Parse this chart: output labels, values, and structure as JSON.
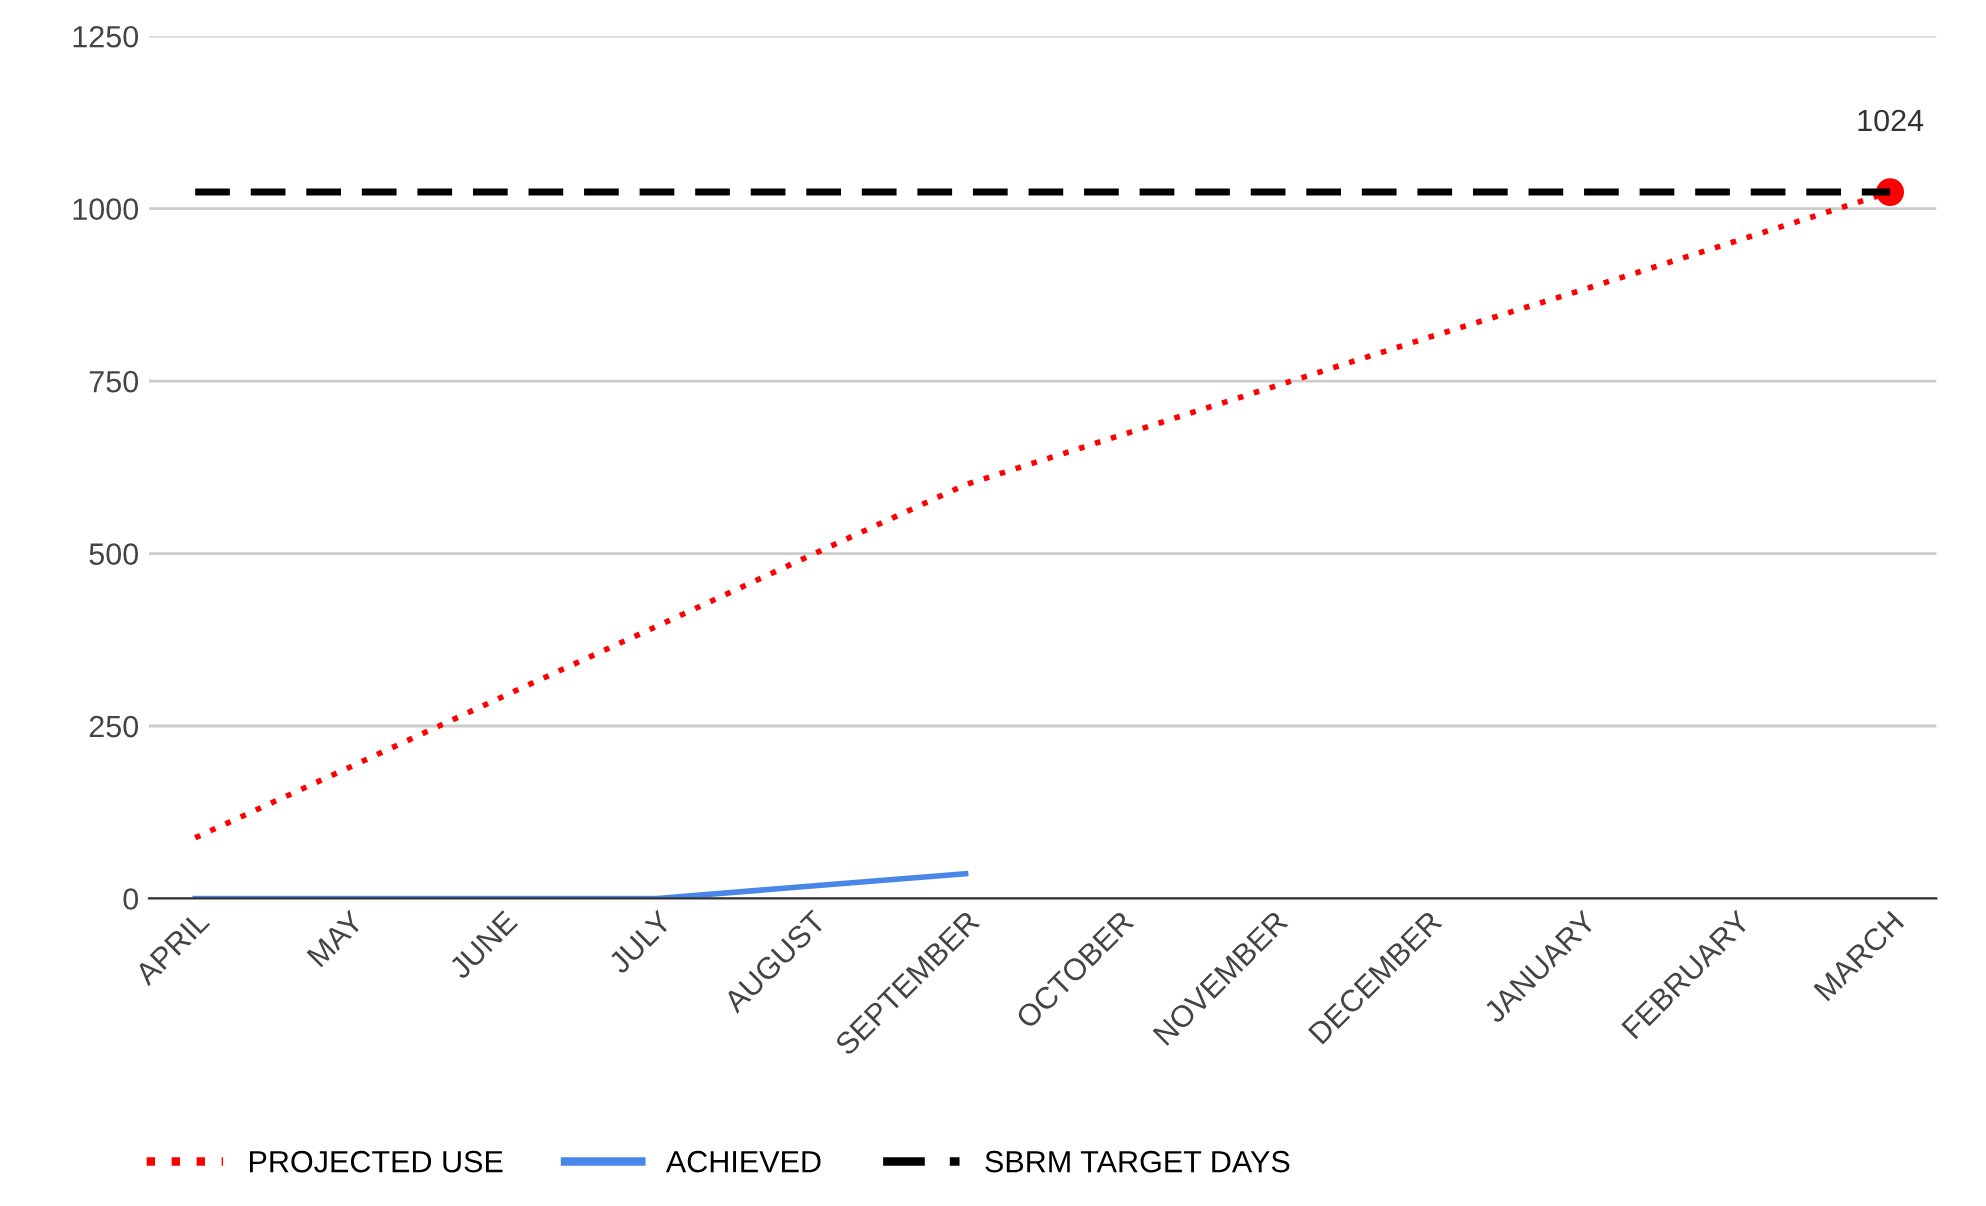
{
  "chart_data": {
    "type": "line",
    "categories": [
      "APRIL",
      "MAY",
      "JUNE",
      "JULY",
      "AUGUST",
      "SEPTEMBER",
      "OCTOBER",
      "NOVEMBER",
      "DECEMBER",
      "JANUARY",
      "FEBRUARY",
      "MARCH"
    ],
    "series": [
      {
        "name": "PROJECTED USE",
        "color": "#ff0000",
        "line_style": "dotted",
        "values": [
          88,
          190,
          293,
          395,
          498,
          600,
          671,
          742,
          813,
          882,
          953,
          1024
        ],
        "value_labels": [
          null,
          null,
          null,
          null,
          null,
          null,
          null,
          null,
          null,
          null,
          null,
          "1024"
        ]
      },
      {
        "name": "ACHIEVED",
        "color": "#4a86e8",
        "line_style": "solid",
        "values": [
          0,
          0,
          0,
          0,
          18,
          36,
          null,
          null,
          null,
          null,
          null,
          null
        ]
      },
      {
        "name": "SBRM TARGET DAYS",
        "color": "#000000",
        "line_style": "dashed",
        "values": [
          1024,
          1024,
          1024,
          1024,
          1024,
          1024,
          1024,
          1024,
          1024,
          1024,
          1024,
          1024
        ]
      }
    ],
    "ylim": [
      0,
      1250
    ],
    "yticks": [
      0,
      250,
      500,
      750,
      1000,
      1250
    ],
    "grid": "y",
    "legend": "bottom"
  }
}
